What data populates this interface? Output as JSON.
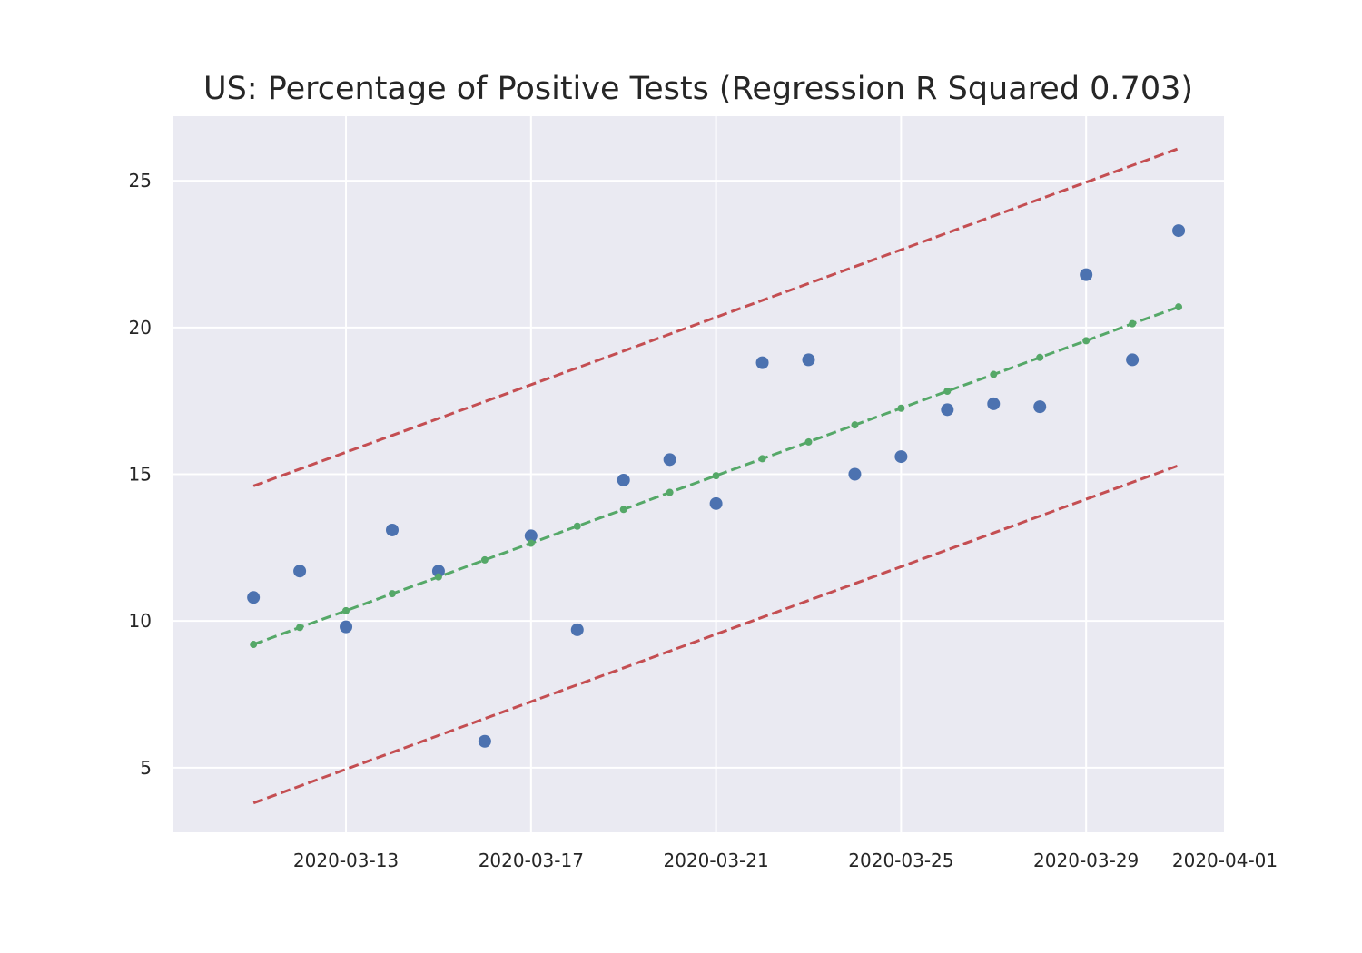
{
  "chart_data": {
    "type": "scatter",
    "title": "US: Percentage of Positive Tests (Regression R Squared 0.703)",
    "xlabel": "",
    "ylabel": "",
    "x_range": [
      "2020-03-09T06:00",
      "2020-04-01"
    ],
    "ylim": [
      2.8,
      27.2
    ],
    "grid": true,
    "legend": "none",
    "x_ticks": [
      "2020-03-13",
      "2020-03-17",
      "2020-03-21",
      "2020-03-25",
      "2020-03-29",
      "2020-04-01"
    ],
    "y_ticks": [
      5,
      10,
      15,
      20,
      25
    ],
    "colors": {
      "background": "#eaeaf2",
      "grid": "#ffffff",
      "observed": "#4c72b0",
      "fit": "#55a868",
      "bounds": "#c44e52"
    },
    "series": [
      {
        "role": "observed",
        "style": "markers",
        "points": [
          [
            "2020-03-11",
            10.8
          ],
          [
            "2020-03-12",
            11.7
          ],
          [
            "2020-03-13",
            9.8
          ],
          [
            "2020-03-14",
            13.1
          ],
          [
            "2020-03-15",
            11.7
          ],
          [
            "2020-03-16",
            5.9
          ],
          [
            "2020-03-17",
            12.9
          ],
          [
            "2020-03-18",
            9.7
          ],
          [
            "2020-03-19",
            14.8
          ],
          [
            "2020-03-20",
            15.5
          ],
          [
            "2020-03-21",
            14.0
          ],
          [
            "2020-03-22",
            18.8
          ],
          [
            "2020-03-23",
            18.9
          ],
          [
            "2020-03-24",
            15.0
          ],
          [
            "2020-03-25",
            15.6
          ],
          [
            "2020-03-26",
            17.2
          ],
          [
            "2020-03-27",
            17.4
          ],
          [
            "2020-03-28",
            17.3
          ],
          [
            "2020-03-29",
            21.8
          ],
          [
            "2020-03-30",
            18.9
          ],
          [
            "2020-03-31",
            23.3
          ]
        ]
      },
      {
        "role": "fit",
        "style": "dashed-line-with-dots",
        "points": [
          [
            "2020-03-11",
            9.2
          ],
          [
            "2020-03-12",
            9.78
          ],
          [
            "2020-03-13",
            10.35
          ],
          [
            "2020-03-14",
            10.93
          ],
          [
            "2020-03-15",
            11.5
          ],
          [
            "2020-03-16",
            12.08
          ],
          [
            "2020-03-17",
            12.65
          ],
          [
            "2020-03-18",
            13.23
          ],
          [
            "2020-03-19",
            13.8
          ],
          [
            "2020-03-20",
            14.38
          ],
          [
            "2020-03-21",
            14.95
          ],
          [
            "2020-03-22",
            15.53
          ],
          [
            "2020-03-23",
            16.1
          ],
          [
            "2020-03-24",
            16.68
          ],
          [
            "2020-03-25",
            17.25
          ],
          [
            "2020-03-26",
            17.83
          ],
          [
            "2020-03-27",
            18.4
          ],
          [
            "2020-03-28",
            18.98
          ],
          [
            "2020-03-29",
            19.55
          ],
          [
            "2020-03-30",
            20.13
          ],
          [
            "2020-03-31",
            20.7
          ]
        ]
      },
      {
        "role": "upper-bound",
        "style": "dashed-line",
        "points": [
          [
            "2020-03-11",
            14.6
          ],
          [
            "2020-03-31",
            26.1
          ]
        ]
      },
      {
        "role": "lower-bound",
        "style": "dashed-line",
        "points": [
          [
            "2020-03-11",
            3.8
          ],
          [
            "2020-03-31",
            15.3
          ]
        ]
      }
    ]
  }
}
